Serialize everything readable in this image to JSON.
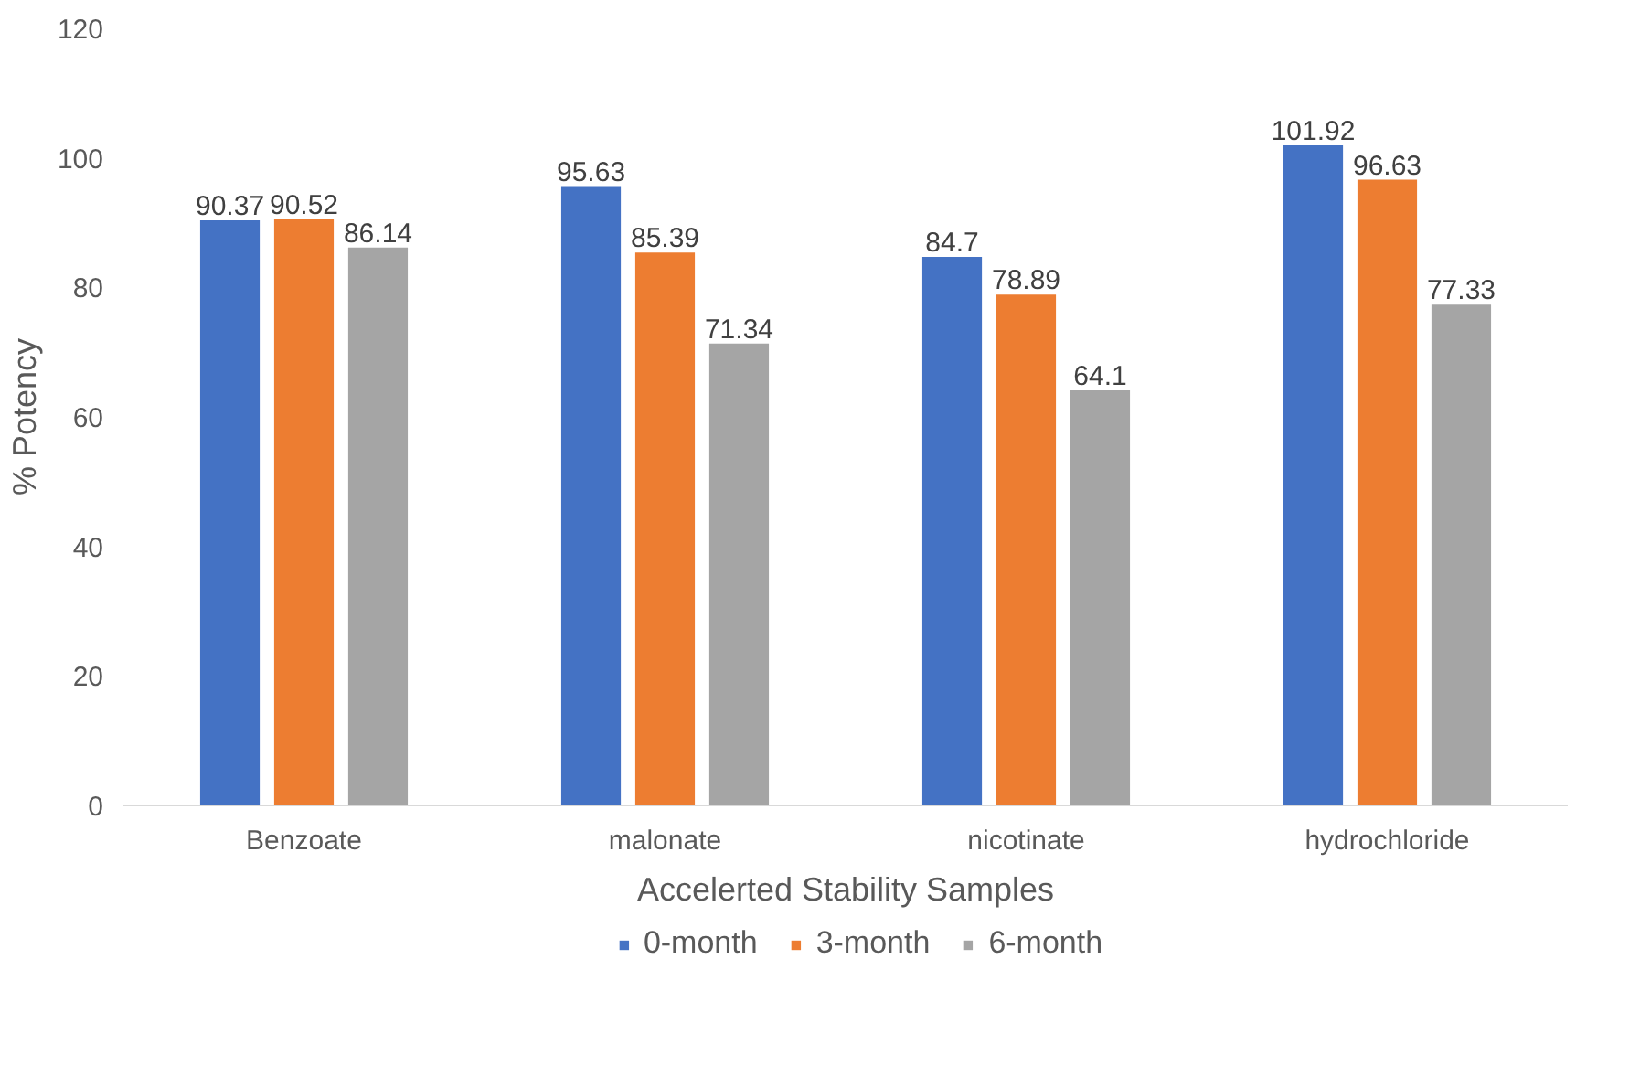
{
  "chart_data": {
    "type": "bar",
    "xlabel": "Accelerted Stability Samples",
    "ylabel": "% Potency",
    "categories": [
      "Benzoate",
      "malonate",
      "nicotinate",
      "hydrochloride"
    ],
    "series": [
      {
        "name": "0-month",
        "color": "#4472c4",
        "values": [
          90.37,
          95.63,
          84.7,
          101.92
        ]
      },
      {
        "name": "3-month",
        "color": "#ed7d31",
        "values": [
          90.52,
          85.39,
          78.89,
          96.63
        ]
      },
      {
        "name": "6-month",
        "color": "#a5a5a5",
        "values": [
          86.14,
          71.34,
          64.1,
          77.33
        ]
      }
    ],
    "ylim": [
      0,
      120
    ],
    "yticks": [
      0,
      20,
      40,
      60,
      80,
      100,
      120
    ],
    "grid": false,
    "legend": "bottom",
    "data_labels": true
  }
}
